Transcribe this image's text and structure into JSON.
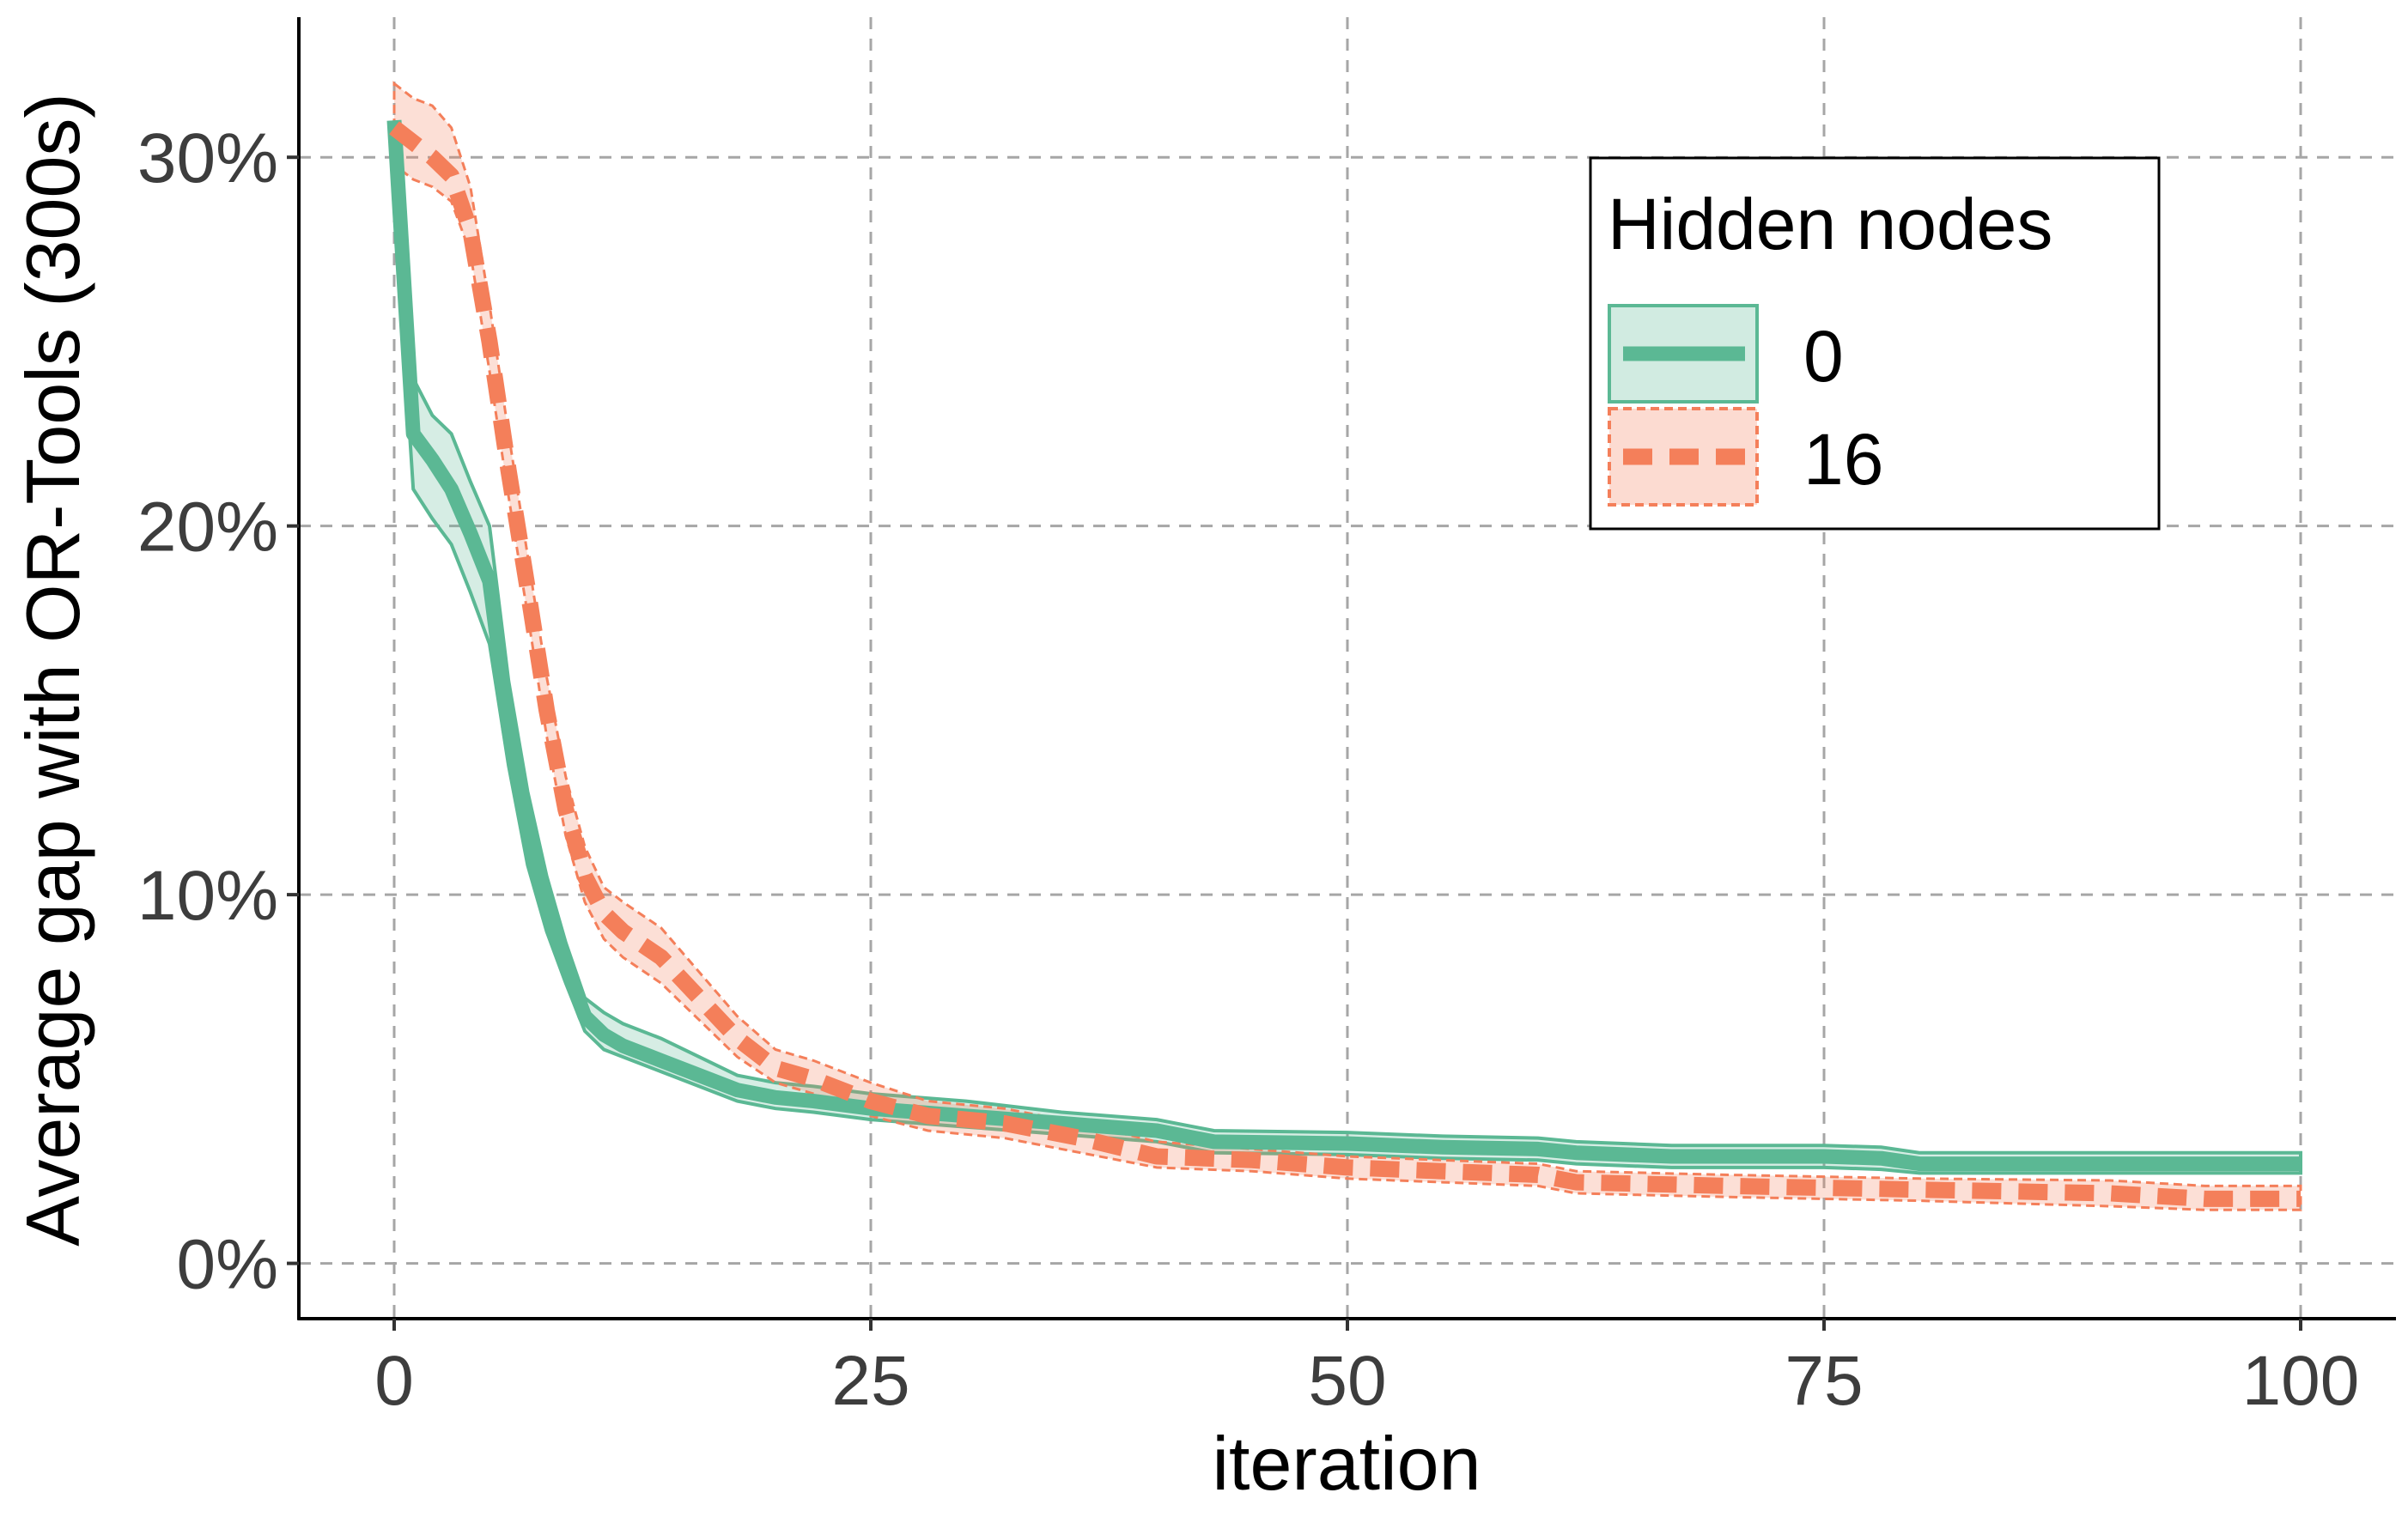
{
  "chart_data": {
    "type": "line",
    "xlabel": "iteration",
    "ylabel": "Average gap with OR-Tools (300s)",
    "xlim": [
      -5,
      105
    ],
    "ylim": [
      -1.5,
      33.8
    ],
    "x_ticks": [
      0,
      25,
      50,
      75,
      100
    ],
    "x_tick_labels": [
      "0",
      "25",
      "50",
      "75",
      "100"
    ],
    "y_ticks": [
      0,
      10,
      20,
      30
    ],
    "y_tick_labels": [
      "0%",
      "10%",
      "20%",
      "30%"
    ],
    "grid": true,
    "legend": {
      "title": "Hidden nodes",
      "position": "top-right"
    },
    "colors": {
      "0": "#5bb894",
      "16": "#f47f5a"
    },
    "series": [
      {
        "name": "0",
        "line_style": "solid",
        "points": [
          {
            "x": 0,
            "y": 31.0,
            "lo": 29.0,
            "hi": 31.0
          },
          {
            "x": 1,
            "y": 22.5,
            "lo": 21.0,
            "hi": 24.0
          },
          {
            "x": 2,
            "y": 21.8,
            "lo": 20.2,
            "hi": 23.0
          },
          {
            "x": 3,
            "y": 21.0,
            "lo": 19.5,
            "hi": 22.5
          },
          {
            "x": 4,
            "y": 19.8,
            "lo": 18.2,
            "hi": 21.2
          },
          {
            "x": 5,
            "y": 18.5,
            "lo": 16.8,
            "hi": 20.0
          },
          {
            "x": 6,
            "y": 14.5,
            "lo": 13.5,
            "hi": 15.8
          },
          {
            "x": 7,
            "y": 11.8,
            "lo": 10.8,
            "hi": 12.8
          },
          {
            "x": 8,
            "y": 9.7,
            "lo": 9.0,
            "hi": 10.5
          },
          {
            "x": 9,
            "y": 8.1,
            "lo": 7.6,
            "hi": 8.7
          },
          {
            "x": 10,
            "y": 6.7,
            "lo": 6.3,
            "hi": 7.2
          },
          {
            "x": 11,
            "y": 6.2,
            "lo": 5.8,
            "hi": 6.8
          },
          {
            "x": 12,
            "y": 5.9,
            "lo": 5.6,
            "hi": 6.5
          },
          {
            "x": 14,
            "y": 5.5,
            "lo": 5.2,
            "hi": 6.1
          },
          {
            "x": 16,
            "y": 5.1,
            "lo": 4.8,
            "hi": 5.6
          },
          {
            "x": 18,
            "y": 4.7,
            "lo": 4.4,
            "hi": 5.1
          },
          {
            "x": 20,
            "y": 4.5,
            "lo": 4.2,
            "hi": 4.9
          },
          {
            "x": 22,
            "y": 4.4,
            "lo": 4.1,
            "hi": 4.8
          },
          {
            "x": 25,
            "y": 4.2,
            "lo": 3.9,
            "hi": 4.6
          },
          {
            "x": 30,
            "y": 4.0,
            "lo": 3.7,
            "hi": 4.4
          },
          {
            "x": 35,
            "y": 3.8,
            "lo": 3.5,
            "hi": 4.1
          },
          {
            "x": 40,
            "y": 3.6,
            "lo": 3.3,
            "hi": 3.9
          },
          {
            "x": 43,
            "y": 3.3,
            "lo": 3.0,
            "hi": 3.6
          },
          {
            "x": 50,
            "y": 3.25,
            "lo": 2.95,
            "hi": 3.55
          },
          {
            "x": 55,
            "y": 3.15,
            "lo": 2.85,
            "hi": 3.45
          },
          {
            "x": 60,
            "y": 3.1,
            "lo": 2.8,
            "hi": 3.4
          },
          {
            "x": 62,
            "y": 3.0,
            "lo": 2.7,
            "hi": 3.3
          },
          {
            "x": 67,
            "y": 2.9,
            "lo": 2.6,
            "hi": 3.2
          },
          {
            "x": 75,
            "y": 2.9,
            "lo": 2.6,
            "hi": 3.2
          },
          {
            "x": 78,
            "y": 2.85,
            "lo": 2.55,
            "hi": 3.15
          },
          {
            "x": 80,
            "y": 2.7,
            "lo": 2.45,
            "hi": 3.0
          },
          {
            "x": 90,
            "y": 2.7,
            "lo": 2.45,
            "hi": 3.0
          },
          {
            "x": 100,
            "y": 2.7,
            "lo": 2.45,
            "hi": 3.0
          }
        ]
      },
      {
        "name": "16",
        "line_style": "dashed",
        "points": [
          {
            "x": 0,
            "y": 30.8,
            "lo": 29.8,
            "hi": 32.0
          },
          {
            "x": 1,
            "y": 30.4,
            "lo": 29.4,
            "hi": 31.6
          },
          {
            "x": 2,
            "y": 30.0,
            "lo": 29.2,
            "hi": 31.4
          },
          {
            "x": 3,
            "y": 29.5,
            "lo": 28.8,
            "hi": 30.8
          },
          {
            "x": 4,
            "y": 28.0,
            "lo": 27.4,
            "hi": 29.2
          },
          {
            "x": 5,
            "y": 25.0,
            "lo": 24.2,
            "hi": 26.0
          },
          {
            "x": 6,
            "y": 21.5,
            "lo": 20.8,
            "hi": 22.5
          },
          {
            "x": 7,
            "y": 18.3,
            "lo": 17.6,
            "hi": 19.2
          },
          {
            "x": 8,
            "y": 15.0,
            "lo": 14.3,
            "hi": 15.9
          },
          {
            "x": 9,
            "y": 12.3,
            "lo": 11.6,
            "hi": 13.2
          },
          {
            "x": 10,
            "y": 10.5,
            "lo": 9.8,
            "hi": 11.3
          },
          {
            "x": 11,
            "y": 9.5,
            "lo": 8.8,
            "hi": 10.2
          },
          {
            "x": 12,
            "y": 9.0,
            "lo": 8.3,
            "hi": 9.8
          },
          {
            "x": 14,
            "y": 8.3,
            "lo": 7.6,
            "hi": 9.1
          },
          {
            "x": 16,
            "y": 7.2,
            "lo": 6.6,
            "hi": 7.9
          },
          {
            "x": 18,
            "y": 6.1,
            "lo": 5.6,
            "hi": 6.7
          },
          {
            "x": 20,
            "y": 5.3,
            "lo": 4.9,
            "hi": 5.8
          },
          {
            "x": 22,
            "y": 5.0,
            "lo": 4.6,
            "hi": 5.5
          },
          {
            "x": 25,
            "y": 4.4,
            "lo": 4.0,
            "hi": 4.9
          },
          {
            "x": 28,
            "y": 4.0,
            "lo": 3.6,
            "hi": 4.4
          },
          {
            "x": 32,
            "y": 3.8,
            "lo": 3.4,
            "hi": 4.2
          },
          {
            "x": 36,
            "y": 3.4,
            "lo": 3.0,
            "hi": 3.8
          },
          {
            "x": 40,
            "y": 2.9,
            "lo": 2.6,
            "hi": 3.3
          },
          {
            "x": 45,
            "y": 2.8,
            "lo": 2.5,
            "hi": 3.1
          },
          {
            "x": 50,
            "y": 2.6,
            "lo": 2.3,
            "hi": 2.9
          },
          {
            "x": 55,
            "y": 2.5,
            "lo": 2.2,
            "hi": 2.8
          },
          {
            "x": 60,
            "y": 2.4,
            "lo": 2.1,
            "hi": 2.7
          },
          {
            "x": 62,
            "y": 2.2,
            "lo": 1.9,
            "hi": 2.5
          },
          {
            "x": 70,
            "y": 2.1,
            "lo": 1.8,
            "hi": 2.4
          },
          {
            "x": 80,
            "y": 2.0,
            "lo": 1.7,
            "hi": 2.3
          },
          {
            "x": 90,
            "y": 1.9,
            "lo": 1.55,
            "hi": 2.25
          },
          {
            "x": 95,
            "y": 1.75,
            "lo": 1.45,
            "hi": 2.1
          },
          {
            "x": 100,
            "y": 1.75,
            "lo": 1.45,
            "hi": 2.1
          }
        ]
      }
    ]
  }
}
